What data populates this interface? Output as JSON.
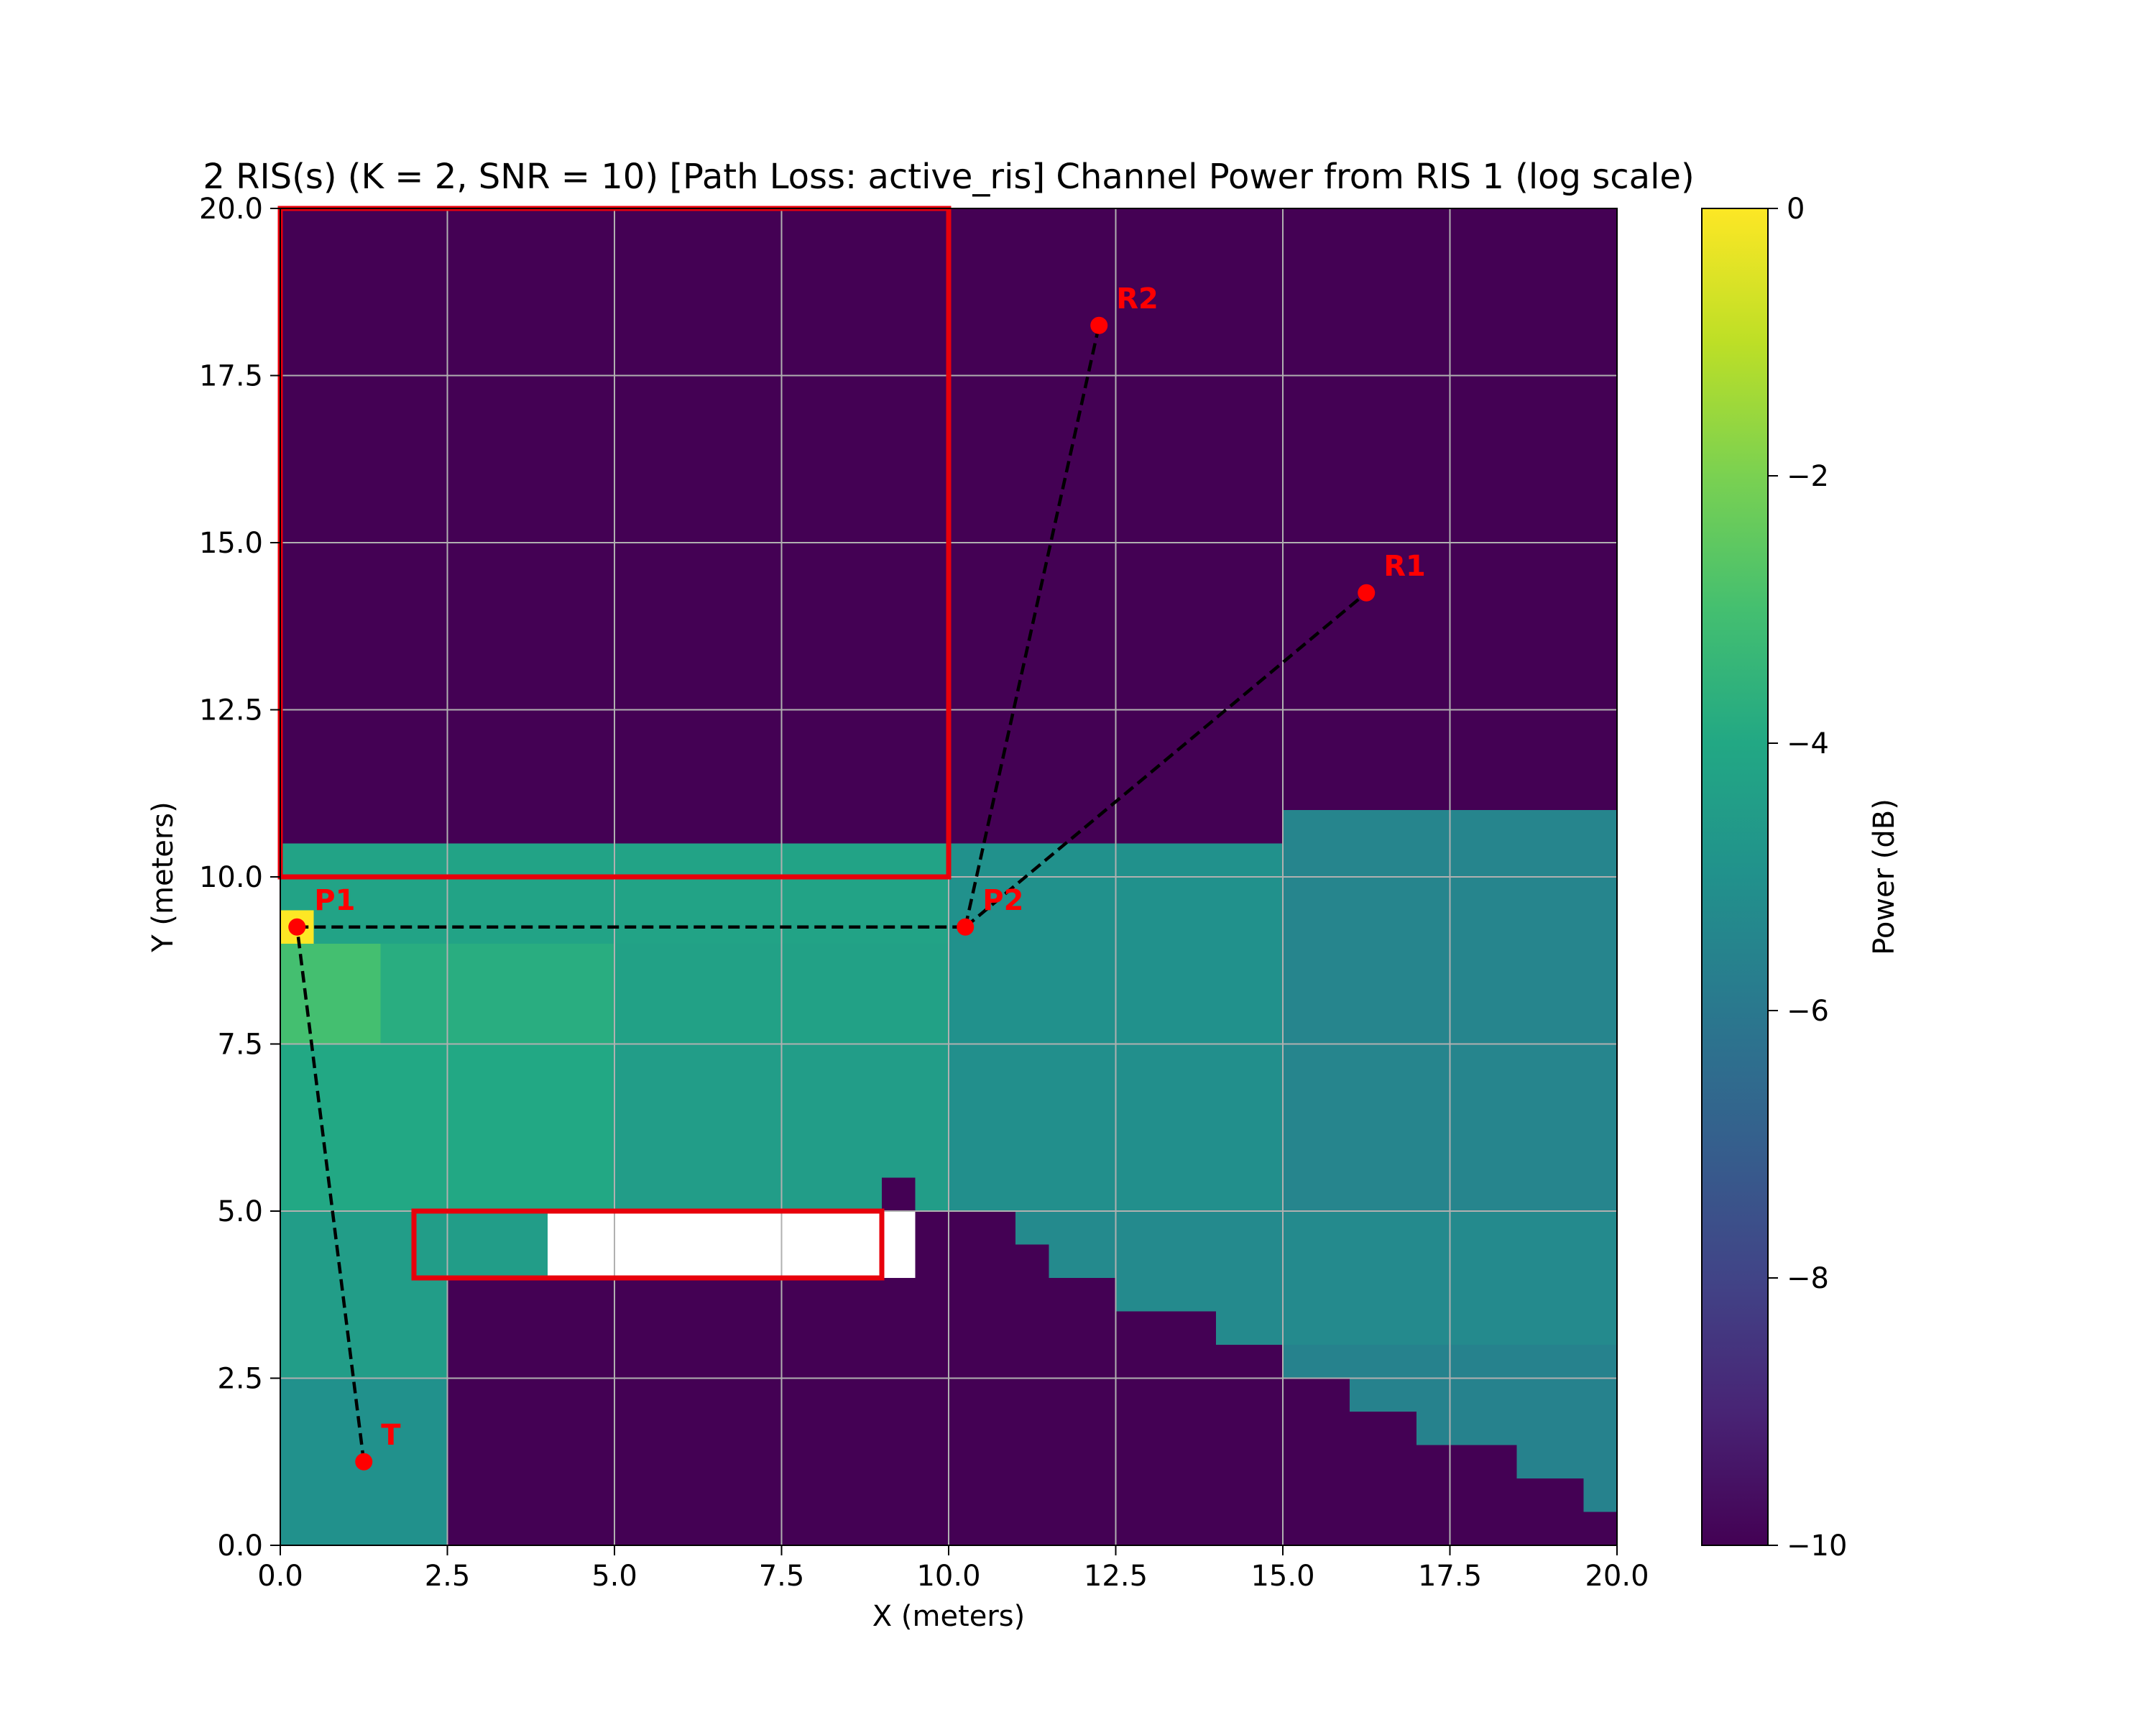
{
  "chart_data": {
    "type": "heatmap",
    "title": "2 RIS(s) (K = 2, SNR = 10) [Path Loss: active_ris] Channel Power from RIS 1 (log scale)",
    "xlabel": "X (meters)",
    "ylabel": "Y (meters)",
    "xlim": [
      0,
      20
    ],
    "ylim": [
      0,
      20
    ],
    "grid": true,
    "x_ticks": [
      "0.0",
      "2.5",
      "5.0",
      "7.5",
      "10.0",
      "12.5",
      "15.0",
      "17.5",
      "20.0"
    ],
    "y_ticks": [
      "0.0",
      "2.5",
      "5.0",
      "7.5",
      "10.0",
      "12.5",
      "15.0",
      "17.5",
      "20.0"
    ],
    "colorbar": {
      "label": "Power (dB)",
      "range": [
        -10,
        0
      ],
      "colormap": "viridis",
      "ticks": [
        "0",
        "−2",
        "−4",
        "−6",
        "−8",
        "−10"
      ],
      "tick_values": [
        0,
        -2,
        -4,
        -6,
        -8,
        -10
      ]
    },
    "cell_size_m": 0.5,
    "regions": [
      {
        "x": [
          0,
          10
        ],
        "y": [
          10.5,
          20
        ],
        "value": -10
      },
      {
        "x": [
          10,
          15
        ],
        "y": [
          10.5,
          20
        ],
        "value": -10
      },
      {
        "x": [
          15,
          20
        ],
        "y": [
          11,
          20
        ],
        "value": -10
      },
      {
        "x": [
          0,
          10
        ],
        "y": [
          9,
          10.5
        ],
        "value": -4.2
      },
      {
        "x": [
          10,
          15
        ],
        "y": [
          9,
          10.5
        ],
        "value": -5.0
      },
      {
        "x": [
          15,
          20
        ],
        "y": [
          9,
          11
        ],
        "value": -5.5
      },
      {
        "x": [
          0,
          1.5
        ],
        "y": [
          7.5,
          9
        ],
        "value": -3.0
      },
      {
        "x": [
          1.5,
          5
        ],
        "y": [
          7.5,
          9
        ],
        "value": -3.8
      },
      {
        "x": [
          5,
          10
        ],
        "y": [
          7.5,
          9
        ],
        "value": -4.3
      },
      {
        "x": [
          10,
          15
        ],
        "y": [
          7.5,
          9
        ],
        "value": -5.0
      },
      {
        "x": [
          15,
          20
        ],
        "y": [
          7.5,
          9
        ],
        "value": -5.5
      },
      {
        "x": [
          0,
          5
        ],
        "y": [
          5,
          7.5
        ],
        "value": -4.0
      },
      {
        "x": [
          5,
          10
        ],
        "y": [
          5,
          7.5
        ],
        "value": -4.5
      },
      {
        "x": [
          10,
          15
        ],
        "y": [
          5,
          7.5
        ],
        "value": -5.1
      },
      {
        "x": [
          15,
          20
        ],
        "y": [
          5,
          7.5
        ],
        "value": -5.5
      },
      {
        "x": [
          0,
          4
        ],
        "y": [
          2.5,
          5
        ],
        "value": -4.5
      },
      {
        "x": [
          0,
          4
        ],
        "y": [
          0,
          2.5
        ],
        "value": -5.0
      },
      {
        "x": [
          10,
          20
        ],
        "y": [
          3,
          5
        ],
        "value": -5.3
      },
      {
        "x": [
          15,
          20
        ],
        "y": [
          0.5,
          3
        ],
        "value": -5.6
      },
      {
        "x": [
          2.5,
          10
        ],
        "y": [
          0,
          4
        ],
        "value": -10
      },
      {
        "x": [
          9.5,
          10.5
        ],
        "y": [
          3,
          5
        ],
        "value": -10
      },
      {
        "x": [
          9.5,
          11
        ],
        "y": [
          3,
          5
        ],
        "value": -10
      },
      {
        "x": [
          10.5,
          11.5
        ],
        "y": [
          3,
          4.5
        ],
        "value": -10
      },
      {
        "x": [
          11.5,
          12.5
        ],
        "y": [
          3,
          4
        ],
        "value": -10
      },
      {
        "x": [
          12.5,
          14
        ],
        "y": [
          3,
          3.5
        ],
        "value": -10
      },
      {
        "x": [
          4,
          15
        ],
        "y": [
          0,
          3
        ],
        "value": -10
      },
      {
        "x": [
          15,
          16
        ],
        "y": [
          0,
          2.5
        ],
        "value": -10
      },
      {
        "x": [
          16,
          17
        ],
        "y": [
          0,
          2
        ],
        "value": -10
      },
      {
        "x": [
          17,
          18.5
        ],
        "y": [
          0,
          1.5
        ],
        "value": -10
      },
      {
        "x": [
          18.5,
          19.5
        ],
        "y": [
          0,
          1
        ],
        "value": -10
      },
      {
        "x": [
          19.5,
          20
        ],
        "y": [
          0,
          0.5
        ],
        "value": -10
      },
      {
        "x": [
          3,
          3.5
        ],
        "y": [
          1,
          3
        ],
        "value": -10
      },
      {
        "x": [
          3.5,
          4
        ],
        "y": [
          0.5,
          3
        ],
        "value": -10
      },
      {
        "x": [
          2.5,
          3
        ],
        "y": [
          3,
          4
        ],
        "value": -10
      },
      {
        "x": [
          9,
          9.5
        ],
        "y": [
          5,
          5.5
        ],
        "value": -10
      },
      {
        "x": [
          0,
          0.5
        ],
        "y": [
          9,
          9.5
        ],
        "value": 0
      }
    ],
    "obstacles": [
      {
        "x": [
          0,
          10
        ],
        "y": [
          10,
          20
        ]
      },
      {
        "x": [
          2,
          9
        ],
        "y": [
          4,
          5
        ]
      }
    ],
    "points": [
      {
        "label": "T",
        "x": 1.25,
        "y": 1.25
      },
      {
        "label": "P1",
        "x": 0.25,
        "y": 9.25
      },
      {
        "label": "P2",
        "x": 10.25,
        "y": 9.25
      },
      {
        "label": "R1",
        "x": 16.25,
        "y": 14.25
      },
      {
        "label": "R2",
        "x": 12.25,
        "y": 18.25
      }
    ],
    "paths": [
      [
        "T",
        "P1"
      ],
      [
        "P1",
        "P2"
      ],
      [
        "P2",
        "R1"
      ],
      [
        "P2",
        "R2"
      ]
    ],
    "colors": {
      "obstacle_edge": "#e8000b",
      "marker": "#ff0000",
      "path": "#000000",
      "grid": "#b0b0b0"
    }
  }
}
